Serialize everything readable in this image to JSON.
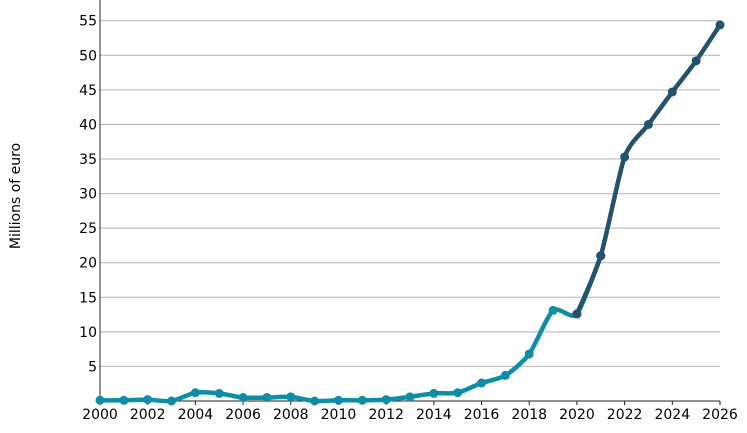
{
  "chart_data": {
    "type": "line",
    "title": "",
    "xlabel": "",
    "ylabel": "Millions of euro",
    "xlim": [
      2000,
      2026
    ],
    "ylim": [
      0,
      58
    ],
    "x_ticks": [
      2000,
      2002,
      2004,
      2006,
      2008,
      2010,
      2012,
      2014,
      2016,
      2018,
      2020,
      2022,
      2024,
      2026
    ],
    "y_ticks": [
      5,
      10,
      15,
      20,
      25,
      30,
      35,
      40,
      45,
      50,
      55
    ],
    "grid": "horizontal",
    "legend": "none",
    "series": [
      {
        "color": "#0e8ea6",
        "x": [
          2000,
          2001,
          2002,
          2003,
          2004,
          2005,
          2006,
          2007,
          2008,
          2009,
          2010,
          2011,
          2012,
          2013,
          2014,
          2015,
          2016,
          2017,
          2018,
          2019,
          2020,
          2021
        ],
        "y": [
          0.1,
          0.1,
          0.2,
          0.0,
          1.2,
          1.1,
          0.5,
          0.5,
          0.6,
          0.0,
          0.1,
          0.1,
          0.2,
          0.6,
          1.1,
          1.2,
          2.6,
          3.7,
          6.8,
          13.1,
          12.6,
          21.0
        ]
      },
      {
        "color": "#24526a",
        "x": [
          2020,
          2021,
          2022,
          2023,
          2024,
          2025,
          2026
        ],
        "y": [
          12.6,
          21.0,
          35.3,
          40.0,
          44.7,
          49.2,
          54.4
        ]
      }
    ]
  }
}
